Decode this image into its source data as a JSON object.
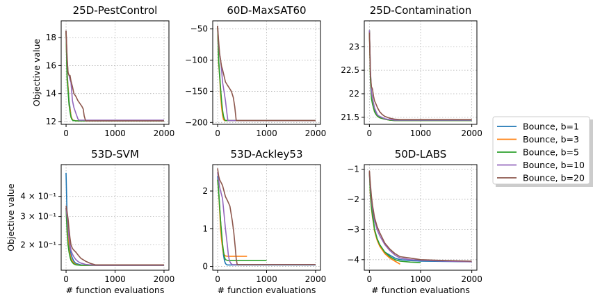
{
  "chart_data": [
    {
      "type": "line",
      "title": "25D-PestControl",
      "ylabel": "Objective value",
      "xlabel": "",
      "xlim": [
        -100,
        2100
      ],
      "ylim": [
        11.8,
        19.2
      ],
      "xticks": [
        0,
        1000,
        2000
      ],
      "yticks": [
        12,
        14,
        16,
        18
      ],
      "series": [
        {
          "name": "Bounce, b=1",
          "x": [
            0,
            20,
            40,
            60,
            80,
            100,
            120,
            140,
            200,
            2000
          ],
          "y": [
            18.5,
            15.5,
            14.5,
            13.5,
            13.0,
            12.4,
            12.2,
            12.1,
            12.05,
            12.05
          ]
        },
        {
          "name": "Bounce, b=3",
          "x": [
            0,
            20,
            40,
            60,
            80,
            100,
            120,
            140,
            200,
            2000
          ],
          "y": [
            18.5,
            15.3,
            14.4,
            13.3,
            12.9,
            12.4,
            12.2,
            12.1,
            12.05,
            12.05
          ]
        },
        {
          "name": "Bounce, b=5",
          "x": [
            0,
            20,
            40,
            60,
            80,
            100,
            120,
            140,
            200,
            2000
          ],
          "y": [
            18.5,
            15.0,
            14.2,
            13.2,
            12.7,
            12.3,
            12.15,
            12.08,
            12.05,
            12.05
          ]
        },
        {
          "name": "Bounce, b=10",
          "x": [
            0,
            20,
            40,
            60,
            80,
            100,
            130,
            160,
            200,
            240,
            260,
            2000
          ],
          "y": [
            18.5,
            16.5,
            15.5,
            15.3,
            15.0,
            14.8,
            13.5,
            13.0,
            12.6,
            12.2,
            12.1,
            12.1
          ]
        },
        {
          "name": "Bounce, b=20",
          "x": [
            0,
            20,
            40,
            60,
            80,
            100,
            130,
            160,
            200,
            240,
            280,
            320,
            350,
            370,
            400,
            2000
          ],
          "y": [
            18.5,
            16.6,
            15.5,
            15.3,
            15.3,
            14.9,
            14.5,
            14.0,
            13.8,
            13.5,
            13.3,
            13.1,
            12.9,
            12.4,
            12.05,
            12.05
          ]
        }
      ]
    },
    {
      "type": "line",
      "title": "60D-MaxSAT60",
      "ylabel": "",
      "xlabel": "",
      "xlim": [
        -100,
        2100
      ],
      "ylim": [
        -203,
        -37
      ],
      "xticks": [
        0,
        1000,
        2000
      ],
      "yticks": [
        -200,
        -150,
        -100,
        -50
      ],
      "series": [
        {
          "name": "Bounce, b=1",
          "x": [
            0,
            20,
            40,
            60,
            80,
            100,
            120,
            140,
            2000
          ],
          "y": [
            -45,
            -100,
            -120,
            -150,
            -170,
            -185,
            -195,
            -197,
            -197
          ]
        },
        {
          "name": "Bounce, b=3",
          "x": [
            0,
            20,
            40,
            60,
            80,
            100,
            120,
            140,
            2000
          ],
          "y": [
            -45,
            -105,
            -125,
            -155,
            -175,
            -188,
            -195,
            -197,
            -197
          ]
        },
        {
          "name": "Bounce, b=5",
          "x": [
            0,
            20,
            40,
            60,
            80,
            100,
            120,
            140,
            160,
            2000
          ],
          "y": [
            -45,
            -100,
            -125,
            -145,
            -165,
            -180,
            -190,
            -195,
            -197,
            -197
          ]
        },
        {
          "name": "Bounce, b=10",
          "x": [
            0,
            20,
            40,
            60,
            80,
            100,
            130,
            160,
            190,
            210,
            2000
          ],
          "y": [
            -45,
            -75,
            -90,
            -100,
            -115,
            -135,
            -150,
            -165,
            -185,
            -197,
            -197
          ]
        },
        {
          "name": "Bounce, b=20",
          "x": [
            0,
            20,
            40,
            60,
            80,
            100,
            130,
            160,
            200,
            240,
            280,
            320,
            350,
            380,
            2000
          ],
          "y": [
            -45,
            -70,
            -90,
            -100,
            -110,
            -115,
            -125,
            -135,
            -140,
            -145,
            -150,
            -160,
            -175,
            -197,
            -197
          ]
        }
      ]
    },
    {
      "type": "line",
      "title": "25D-Contamination",
      "ylabel": "",
      "xlabel": "",
      "xlim": [
        -100,
        2100
      ],
      "ylim": [
        21.35,
        23.55
      ],
      "xticks": [
        0,
        1000,
        2000
      ],
      "yticks": [
        21.5,
        22.0,
        22.5,
        23.0
      ],
      "series": [
        {
          "name": "Bounce, b=1",
          "x": [
            0,
            20,
            40,
            60,
            80,
            100,
            130,
            160,
            200,
            300,
            400,
            500,
            2000
          ],
          "y": [
            23.35,
            22.5,
            22.0,
            21.85,
            21.75,
            21.65,
            21.58,
            21.53,
            21.5,
            21.46,
            21.44,
            21.43,
            21.43
          ]
        },
        {
          "name": "Bounce, b=3",
          "x": [
            0,
            20,
            40,
            60,
            80,
            100,
            130,
            160,
            200,
            300,
            400,
            500,
            2000
          ],
          "y": [
            23.35,
            22.4,
            21.95,
            21.8,
            21.7,
            21.62,
            21.56,
            21.52,
            21.49,
            21.46,
            21.44,
            21.43,
            21.43
          ]
        },
        {
          "name": "Bounce, b=5",
          "x": [
            0,
            20,
            40,
            60,
            80,
            100,
            130,
            160,
            200,
            300,
            400,
            500,
            2000
          ],
          "y": [
            23.35,
            22.3,
            21.9,
            21.78,
            21.7,
            21.62,
            21.56,
            21.52,
            21.49,
            21.46,
            21.44,
            21.43,
            21.43
          ]
        },
        {
          "name": "Bounce, b=10",
          "x": [
            0,
            20,
            40,
            60,
            80,
            100,
            130,
            160,
            200,
            300,
            400,
            500,
            2000
          ],
          "y": [
            23.35,
            22.5,
            22.05,
            21.9,
            21.8,
            21.7,
            21.62,
            21.55,
            21.52,
            21.47,
            21.45,
            21.44,
            21.44
          ]
        },
        {
          "name": "Bounce, b=20",
          "x": [
            0,
            20,
            40,
            60,
            80,
            100,
            130,
            160,
            200,
            250,
            300,
            400,
            500,
            600,
            2000
          ],
          "y": [
            23.3,
            22.4,
            22.15,
            22.1,
            21.95,
            21.85,
            21.78,
            21.7,
            21.62,
            21.56,
            21.52,
            21.48,
            21.46,
            21.45,
            21.45
          ]
        }
      ]
    },
    {
      "type": "line",
      "title": "53D-SVM",
      "ylabel": "Objective value",
      "xlabel": "# function evaluations",
      "xlim": [
        -100,
        2100
      ],
      "yscale": "log",
      "ylim": [
        0.139,
        0.63
      ],
      "xticks": [
        0,
        1000,
        2000
      ],
      "yticks": [
        0.2,
        0.3,
        0.4
      ],
      "ytick_labels": [
        "2 × 10⁻¹",
        "3 × 10⁻¹",
        "4 × 10⁻¹"
      ],
      "series": [
        {
          "name": "Bounce, b=1",
          "x": [
            0,
            20,
            40,
            60,
            80,
            100,
            130,
            160,
            200,
            300,
            400,
            600,
            2000
          ],
          "y": [
            0.56,
            0.3,
            0.25,
            0.21,
            0.19,
            0.175,
            0.165,
            0.158,
            0.153,
            0.15,
            0.149,
            0.149,
            0.149
          ]
        },
        {
          "name": "Bounce, b=3",
          "x": [
            0,
            20,
            40,
            60,
            80,
            100,
            130,
            160,
            200,
            300,
            400,
            600,
            2000
          ],
          "y": [
            0.34,
            0.26,
            0.22,
            0.19,
            0.175,
            0.165,
            0.158,
            0.154,
            0.151,
            0.149,
            0.149,
            0.149,
            0.149
          ]
        },
        {
          "name": "Bounce, b=5",
          "x": [
            0,
            20,
            40,
            60,
            80,
            100,
            130,
            160,
            200,
            300,
            400,
            600,
            2000
          ],
          "y": [
            0.34,
            0.24,
            0.2,
            0.18,
            0.168,
            0.16,
            0.155,
            0.152,
            0.15,
            0.149,
            0.149,
            0.149,
            0.149
          ]
        },
        {
          "name": "Bounce, b=10",
          "x": [
            0,
            20,
            40,
            60,
            80,
            100,
            130,
            160,
            200,
            250,
            300,
            400,
            500,
            600,
            2000
          ],
          "y": [
            0.34,
            0.3,
            0.26,
            0.22,
            0.2,
            0.185,
            0.175,
            0.168,
            0.162,
            0.157,
            0.154,
            0.151,
            0.15,
            0.149,
            0.149
          ]
        },
        {
          "name": "Bounce, b=20",
          "x": [
            0,
            20,
            40,
            60,
            80,
            100,
            130,
            160,
            200,
            250,
            300,
            400,
            500,
            600,
            2000
          ],
          "y": [
            0.35,
            0.32,
            0.29,
            0.25,
            0.22,
            0.2,
            0.19,
            0.185,
            0.18,
            0.172,
            0.165,
            0.158,
            0.153,
            0.15,
            0.15
          ]
        }
      ]
    },
    {
      "type": "line",
      "title": "53D-Ackley53",
      "ylabel": "",
      "xlabel": "# function evaluations",
      "xlim": [
        -100,
        2100
      ],
      "ylim": [
        -0.1,
        2.7
      ],
      "xticks": [
        0,
        1000,
        2000
      ],
      "yticks": [
        0,
        1,
        2
      ],
      "series": [
        {
          "name": "Bounce, b=1",
          "x": [
            0,
            20,
            40,
            60,
            80,
            100,
            120,
            140,
            160,
            180,
            200,
            2000
          ],
          "y": [
            2.4,
            2.0,
            1.6,
            1.2,
            0.8,
            0.5,
            0.3,
            0.15,
            0.08,
            0.05,
            0.04,
            0.04
          ]
        },
        {
          "name": "Bounce, b=3",
          "x": [
            0,
            20,
            40,
            60,
            80,
            100,
            120,
            140,
            160,
            200,
            220,
            600
          ],
          "y": [
            2.3,
            2.0,
            1.5,
            1.0,
            0.7,
            0.5,
            0.35,
            0.3,
            0.28,
            0.27,
            0.27,
            0.27
          ]
        },
        {
          "name": "Bounce, b=5",
          "x": [
            0,
            20,
            40,
            60,
            80,
            100,
            120,
            140,
            160,
            200,
            220,
            1000
          ],
          "y": [
            2.3,
            2.0,
            1.6,
            1.2,
            0.9,
            0.6,
            0.4,
            0.25,
            0.18,
            0.16,
            0.16,
            0.16
          ]
        },
        {
          "name": "Bounce, b=10",
          "x": [
            0,
            20,
            40,
            60,
            80,
            100,
            130,
            160,
            200,
            220,
            240,
            270,
            300,
            2000
          ],
          "y": [
            2.5,
            2.3,
            2.1,
            2.0,
            1.9,
            1.8,
            1.4,
            1.0,
            0.55,
            0.3,
            0.15,
            0.08,
            0.05,
            0.05
          ]
        },
        {
          "name": "Bounce, b=20",
          "x": [
            0,
            20,
            40,
            60,
            80,
            100,
            130,
            160,
            200,
            250,
            300,
            330,
            360,
            380,
            400,
            2000
          ],
          "y": [
            2.6,
            2.4,
            2.3,
            2.25,
            2.2,
            2.15,
            2.0,
            1.85,
            1.75,
            1.6,
            1.2,
            0.9,
            0.5,
            0.2,
            0.05,
            0.05
          ]
        }
      ]
    },
    {
      "type": "line",
      "title": "50D-LABS",
      "ylabel": "",
      "xlabel": "# function evaluations",
      "xlim": [
        -100,
        2100
      ],
      "ylim": [
        -4.35,
        -0.85
      ],
      "xticks": [
        0,
        1000,
        2000
      ],
      "yticks": [
        -4,
        -3,
        -2,
        -1
      ],
      "series": [
        {
          "name": "Bounce, b=1",
          "x": [
            0,
            20,
            40,
            60,
            80,
            100,
            150,
            200,
            300,
            400,
            500,
            600,
            800,
            1000,
            2000
          ],
          "y": [
            -1.1,
            -1.8,
            -2.2,
            -2.5,
            -2.7,
            -3.0,
            -3.3,
            -3.5,
            -3.75,
            -3.85,
            -3.95,
            -4.0,
            -4.03,
            -4.05,
            -4.07
          ]
        },
        {
          "name": "Bounce, b=3",
          "x": [
            0,
            20,
            40,
            60,
            80,
            100,
            150,
            200,
            300,
            400,
            500,
            600
          ],
          "y": [
            -1.1,
            -1.9,
            -2.3,
            -2.6,
            -2.8,
            -3.05,
            -3.35,
            -3.55,
            -3.8,
            -3.95,
            -4.05,
            -4.15
          ]
        },
        {
          "name": "Bounce, b=5",
          "x": [
            0,
            20,
            40,
            60,
            80,
            100,
            150,
            200,
            300,
            400,
            500,
            600,
            800,
            1000
          ],
          "y": [
            -1.1,
            -1.85,
            -2.25,
            -2.55,
            -2.75,
            -3.0,
            -3.3,
            -3.5,
            -3.75,
            -3.9,
            -4.0,
            -4.05,
            -4.08,
            -4.1
          ]
        },
        {
          "name": "Bounce, b=10",
          "x": [
            0,
            20,
            40,
            60,
            80,
            100,
            150,
            200,
            300,
            400,
            500,
            600,
            800,
            1000,
            1500,
            2000
          ],
          "y": [
            -1.1,
            -1.6,
            -2.0,
            -2.3,
            -2.5,
            -2.7,
            -3.0,
            -3.2,
            -3.5,
            -3.7,
            -3.85,
            -3.95,
            -4.0,
            -4.02,
            -4.05,
            -4.07
          ]
        },
        {
          "name": "Bounce, b=20",
          "x": [
            0,
            20,
            40,
            60,
            80,
            100,
            150,
            200,
            300,
            400,
            500,
            600,
            800,
            1000,
            1500,
            2000
          ],
          "y": [
            -1.05,
            -1.5,
            -1.9,
            -2.2,
            -2.4,
            -2.6,
            -2.9,
            -3.1,
            -3.45,
            -3.65,
            -3.8,
            -3.9,
            -3.95,
            -4.0,
            -4.03,
            -4.05
          ]
        }
      ]
    }
  ],
  "legend": {
    "placement": "right",
    "entries": [
      {
        "label": "Bounce, b=1",
        "color": "#1f77b4"
      },
      {
        "label": "Bounce, b=3",
        "color": "#ff7f0e"
      },
      {
        "label": "Bounce, b=5",
        "color": "#2ca02c"
      },
      {
        "label": "Bounce, b=10",
        "color": "#9467bd"
      },
      {
        "label": "Bounce, b=20",
        "color": "#8c564b"
      }
    ]
  },
  "grid": true
}
